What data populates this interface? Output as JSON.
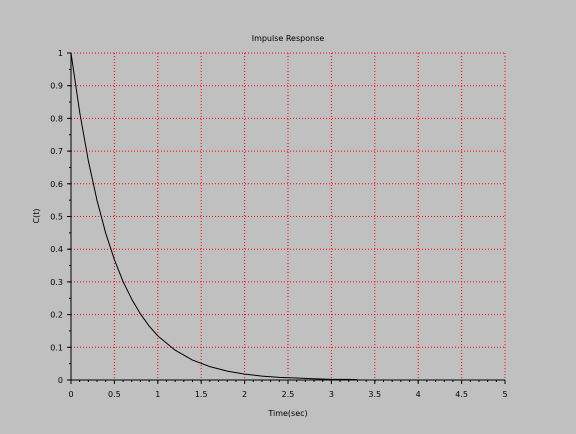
{
  "chart_data": {
    "type": "line",
    "title": "Impulse Response",
    "xlabel": "Time(sec)",
    "ylabel": "C(t)",
    "xlim": [
      0,
      5
    ],
    "ylim": [
      0,
      1
    ],
    "x_ticks": [
      "0",
      "0.5",
      "1",
      "1.5",
      "2",
      "2.5",
      "3",
      "3.5",
      "4",
      "4.5",
      "5"
    ],
    "y_ticks": [
      "0",
      "0.1",
      "0.2",
      "0.3",
      "0.4",
      "0.5",
      "0.6",
      "0.7",
      "0.8",
      "0.9",
      "1"
    ],
    "grid": true,
    "colors": {
      "background": "#c0c0c0",
      "grid": "#ff0000",
      "line": "#000000",
      "axis": "#000000"
    },
    "series": [
      {
        "x": [
          0,
          0.1,
          0.2,
          0.3,
          0.4,
          0.5,
          0.6,
          0.7,
          0.8,
          0.9,
          1.0,
          1.2,
          1.4,
          1.6,
          1.8,
          2.0,
          2.2,
          2.4,
          2.6,
          2.8,
          3.0,
          3.2,
          3.3
        ],
        "y": [
          1.0,
          0.819,
          0.67,
          0.549,
          0.449,
          0.368,
          0.301,
          0.247,
          0.202,
          0.165,
          0.135,
          0.091,
          0.061,
          0.041,
          0.027,
          0.018,
          0.012,
          0.008,
          0.006,
          0.004,
          0.002,
          0.002,
          0.001
        ]
      }
    ]
  }
}
